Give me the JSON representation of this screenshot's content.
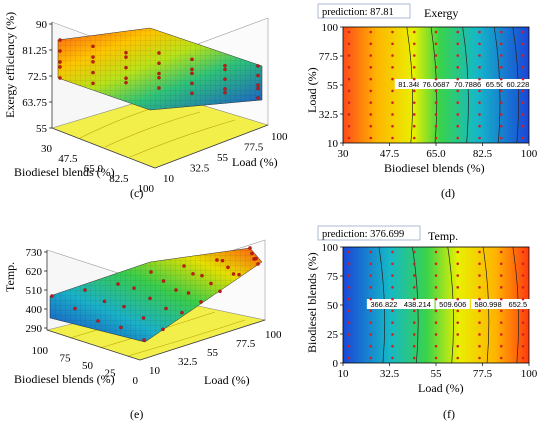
{
  "chart_data": [
    {
      "panel": "(c)",
      "type": "surface3d",
      "zlabel": "Exergy efficiency (%)",
      "xlabel": "Biodiesel blends (%)",
      "ylabel": "Load (%)",
      "z_ticks": [
        "90",
        "81.25",
        "72.5",
        "63.75",
        "55"
      ],
      "x_ticks": [
        "30",
        "47.5",
        "65.0",
        "82.5",
        "100"
      ],
      "y_ticks": [
        "10",
        "32.5",
        "55",
        "77.5",
        "100"
      ],
      "zlim": [
        55,
        90
      ],
      "surface": [
        [
          88,
          85,
          80,
          74,
          68
        ],
        [
          87,
          82,
          76,
          70,
          63
        ],
        [
          86,
          80,
          73,
          66,
          59
        ]
      ]
    },
    {
      "panel": "(d)",
      "type": "contour",
      "title": "Exergy",
      "prediction": "prediction: 87.81",
      "xlabel": "Biodiesel blends (%)",
      "ylabel": "Load (%)",
      "x_ticks": [
        "30",
        "47.5",
        "65.0",
        "82.5",
        "100"
      ],
      "y_ticks": [
        "10",
        "32.5",
        "55",
        "77.5",
        "100"
      ],
      "contour_labels": [
        "81.3489",
        "76.0687",
        "70.7886",
        "65.5085",
        "60.228"
      ],
      "contour_x": [
        37,
        50,
        67,
        84,
        94
      ]
    },
    {
      "panel": "(e)",
      "type": "surface3d",
      "zlabel": "Temp.",
      "xlabel": "Biodiesel blends (%)",
      "ylabel": "Load (%)",
      "z_ticks": [
        "730",
        "620",
        "510",
        "400",
        "290"
      ],
      "x_ticks": [
        "100",
        "75",
        "50",
        "25",
        "0"
      ],
      "y_ticks": [
        "10",
        "32.5",
        "55",
        "77.5",
        "100"
      ],
      "zlim": [
        290,
        730
      ],
      "surface": [
        [
          300,
          420,
          540,
          650,
          720
        ],
        [
          310,
          430,
          550,
          660,
          725
        ],
        [
          320,
          440,
          560,
          665,
          730
        ]
      ]
    },
    {
      "panel": "(f)",
      "type": "contour",
      "title": "Temp.",
      "prediction": "prediction: 376.699",
      "xlabel": "Load (%)",
      "ylabel": "Biodiesel blends (%)",
      "x_ticks": [
        "10",
        "32.5",
        "55",
        "77.5",
        "100"
      ],
      "y_ticks": [
        "0",
        "25",
        "50",
        "75",
        "100"
      ],
      "contour_labels": [
        "366.822",
        "438.214",
        "509.606",
        "580.998",
        "652.5"
      ],
      "contour_x": [
        22,
        40,
        59,
        78,
        94
      ]
    }
  ]
}
